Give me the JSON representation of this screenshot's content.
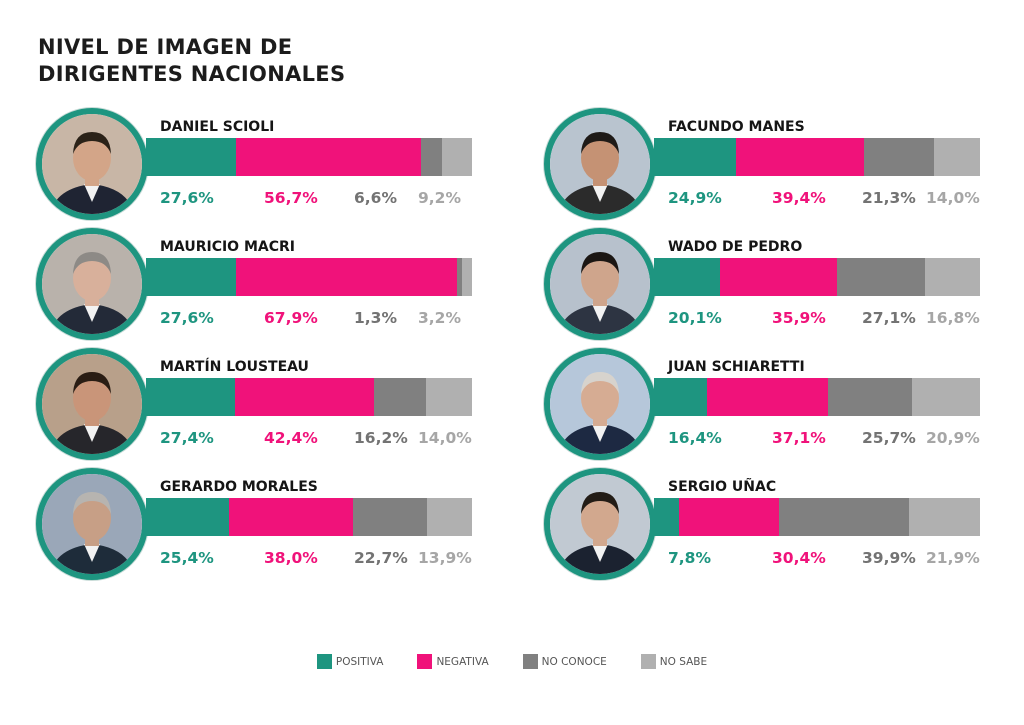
{
  "title": {
    "line1": "NIVEL DE IMAGEN DE",
    "line2": "DIRIGENTES NACIONALES"
  },
  "colors": {
    "positiva": "#1e9580",
    "negativa": "#f0127a",
    "no_conoce": "#808080",
    "no_sabe": "#b0b0b0"
  },
  "legend": [
    {
      "key": "positiva",
      "label": "POSITIVA"
    },
    {
      "key": "negativa",
      "label": "NEGATIVA"
    },
    {
      "key": "no_conoce",
      "label": "NO CONOCE"
    },
    {
      "key": "no_sabe",
      "label": "NO SABE"
    }
  ],
  "chart_data": {
    "type": "bar",
    "stacked": true,
    "orientation": "horizontal",
    "title": "NIVEL DE IMAGEN DE DIRIGENTES NACIONALES",
    "legend_placement": "bottom",
    "categories": [
      "DANIEL SCIOLI",
      "MAURICIO MACRI",
      "MARTÍN LOUSTEAU",
      "GERARDO MORALES",
      "FACUNDO MANES",
      "WADO DE PEDRO",
      "JUAN SCHIARETTI",
      "SERGIO UÑAC"
    ],
    "series": [
      {
        "name": "POSITIVA",
        "values": [
          27.6,
          27.6,
          27.4,
          25.4,
          24.9,
          20.1,
          16.4,
          7.8
        ],
        "labels": [
          "27,6%",
          "27,6%",
          "27,4%",
          "25,4%",
          "24,9%",
          "20,1%",
          "16,4%",
          "7,8%"
        ]
      },
      {
        "name": "NEGATIVA",
        "values": [
          56.7,
          67.9,
          42.4,
          38.0,
          39.4,
          35.9,
          37.1,
          30.4
        ],
        "labels": [
          "56,7%",
          "67,9%",
          "42,4%",
          "38,0%",
          "39,4%",
          "35,9%",
          "37,1%",
          "30,4%"
        ]
      },
      {
        "name": "NO CONOCE",
        "values": [
          6.6,
          1.3,
          16.2,
          22.7,
          21.3,
          27.1,
          25.7,
          39.9
        ],
        "labels": [
          "6,6%",
          "1,3%",
          "16,2%",
          "22,7%",
          "21,3%",
          "27,1%",
          "25,7%",
          "39,9%"
        ]
      },
      {
        "name": "NO SABE",
        "values": [
          9.2,
          3.2,
          14.0,
          13.9,
          14.0,
          16.8,
          20.9,
          21.9
        ],
        "labels": [
          "9,2%",
          "3,2%",
          "14,0%",
          "13,9%",
          "14,0%",
          "16,8%",
          "20,9%",
          "21,9%"
        ]
      }
    ],
    "xlim": [
      0,
      100
    ]
  }
}
